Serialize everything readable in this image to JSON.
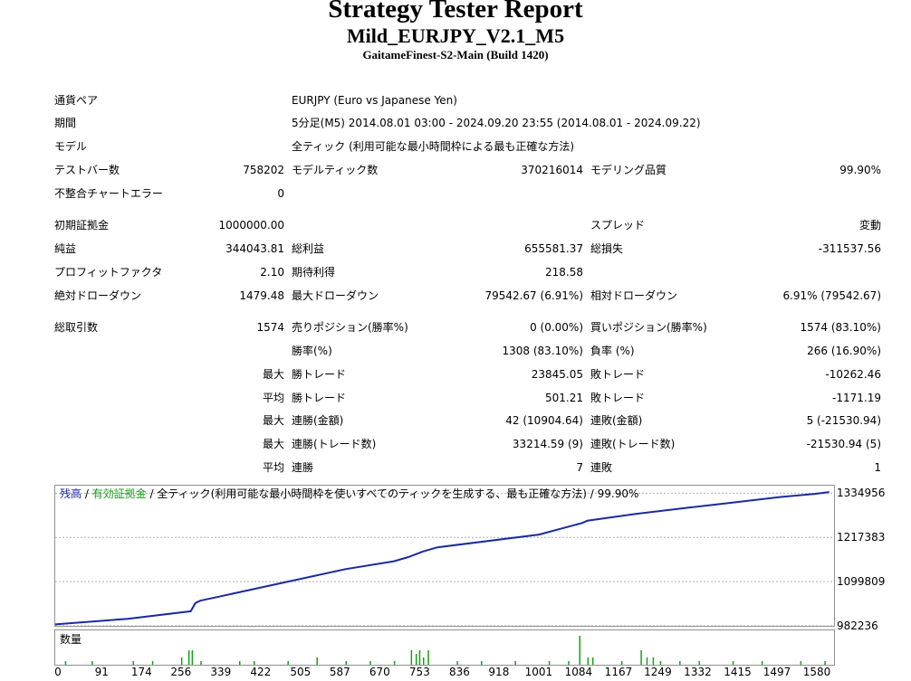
{
  "header": {
    "title": "Strategy Tester Report",
    "subtitle": "Mild_EURJPY_V2.1_M5",
    "build": "GaitameFinest-S2-Main (Build 1420)"
  },
  "info": {
    "symbol_label": "通貨ペア",
    "symbol_value": "EURJPY (Euro vs Japanese Yen)",
    "period_label": "期間",
    "period_value": "5分足(M5) 2014.08.01 03:00 - 2024.09.20 23:55 (2014.08.01 - 2024.09.22)",
    "model_label": "モデル",
    "model_value": "全ティック (利用可能な最小時間枠による最も正確な方法)",
    "bars_label": "テストバー数",
    "bars_value": "758202",
    "ticks_label": "モデルティック数",
    "ticks_value": "370216014",
    "quality_label": "モデリング品質",
    "quality_value": "99.90%",
    "errors_label": "不整合チャートエラー",
    "errors_value": "0"
  },
  "stats": {
    "deposit_label": "初期証拠金",
    "deposit_value": "1000000.00",
    "spread_label": "スプレッド",
    "spread_value": "変動",
    "net_label": "純益",
    "net_value": "344043.81",
    "gross_profit_label": "総利益",
    "gross_profit_value": "655581.37",
    "gross_loss_label": "総損失",
    "gross_loss_value": "-311537.56",
    "pf_label": "プロフィットファクタ",
    "pf_value": "2.10",
    "payoff_label": "期待利得",
    "payoff_value": "218.58",
    "abs_dd_label": "絶対ドローダウン",
    "abs_dd_value": "1479.48",
    "max_dd_label": "最大ドローダウン",
    "max_dd_value": "79542.67 (6.91%)",
    "rel_dd_label": "相対ドローダウン",
    "rel_dd_value": "6.91% (79542.67)",
    "trades_label": "総取引数",
    "trades_value": "1574",
    "short_label": "売りポジション(勝率%)",
    "short_value": "0 (0.00%)",
    "long_label": "買いポジション(勝率%)",
    "long_value": "1574 (83.10%)",
    "winrate_label": "勝率(%)",
    "winrate_value": "1308 (83.10%)",
    "lossrate_label": "負率 (%)",
    "lossrate_value": "266 (16.90%)",
    "max_label": "最大",
    "avg_label": "平均",
    "largest_win_label": "勝トレード",
    "largest_win_value": "23845.05",
    "largest_loss_label": "敗トレード",
    "largest_loss_value": "-10262.46",
    "avg_win_label": "勝トレード",
    "avg_win_value": "501.21",
    "avg_loss_label": "敗トレード",
    "avg_loss_value": "-1171.19",
    "cons_wins_money_label": "連勝(金額)",
    "cons_wins_money_value": "42 (10904.64)",
    "cons_losses_money_label": "連敗(金額)",
    "cons_losses_money_value": "5 (-21530.94)",
    "cons_profit_label": "連勝(トレード数)",
    "cons_profit_value": "33214.59 (9)",
    "cons_loss_label": "連敗(トレード数)",
    "cons_loss_value": "-21530.94 (5)",
    "avg_cons_wins_label": "連勝",
    "avg_cons_wins_value": "7",
    "avg_cons_losses_label": "連敗",
    "avg_cons_losses_value": "1"
  },
  "chart": {
    "legend_balance": "残高",
    "legend_sep1": " / ",
    "legend_equity": "有効証拠金",
    "legend_rest": " / 全ティック(利用可能な最小時間枠を使いすべてのティックを生成する、最も正確な方法) / 99.90%",
    "volume_label": "数量",
    "colors": {
      "balance": "#1a2aa0",
      "equity": "#16a016",
      "volume": "#16a016",
      "grid": "#b0b0b0"
    }
  },
  "chart_data": {
    "type": "line",
    "series": [
      {
        "name": "残高",
        "x": [
          0,
          150,
          280,
          290,
          300,
          600,
          700,
          730,
          760,
          790,
          1000,
          1090,
          1100,
          1200,
          1300,
          1400,
          1500,
          1570,
          1600
        ],
        "y": [
          986000,
          1001000,
          1021000,
          1043000,
          1049000,
          1133000,
          1154000,
          1165000,
          1180000,
          1191000,
          1225000,
          1256000,
          1262000,
          1280000,
          1295000,
          1310000,
          1325000,
          1333000,
          1338000
        ]
      }
    ],
    "yticks": [
      "1334956",
      "1217383",
      "1099809",
      "982236"
    ],
    "ytick_values": [
      1334956,
      1217383,
      1099809,
      982236
    ],
    "xticks": [
      "0",
      "91",
      "174",
      "256",
      "339",
      "422",
      "505",
      "587",
      "670",
      "753",
      "836",
      "918",
      "1001",
      "1084",
      "1167",
      "1249",
      "1332",
      "1415",
      "1497",
      "1580"
    ],
    "xtick_values": [
      0,
      91,
      174,
      256,
      339,
      422,
      505,
      587,
      670,
      753,
      836,
      918,
      1001,
      1084,
      1167,
      1249,
      1332,
      1415,
      1497,
      1580
    ],
    "ylim": [
      982236,
      1355000
    ],
    "xlim": [
      0,
      1610
    ],
    "grid": true,
    "volume": {
      "x": [
        20,
        75,
        160,
        200,
        260,
        275,
        282,
        300,
        380,
        410,
        480,
        540,
        600,
        650,
        700,
        735,
        745,
        752,
        760,
        770,
        830,
        880,
        950,
        1020,
        1060,
        1083,
        1100,
        1110,
        1170,
        1210,
        1222,
        1235,
        1250,
        1290,
        1330,
        1400,
        1460,
        1540,
        1590
      ],
      "y": [
        1,
        1,
        1,
        1,
        2,
        4,
        4,
        1,
        1,
        1,
        1,
        2,
        1,
        1,
        1,
        4,
        3,
        4,
        2,
        4,
        1,
        1,
        1,
        1,
        1,
        8,
        2,
        2,
        1,
        4,
        2,
        2,
        1,
        1,
        1,
        1,
        1,
        1,
        1
      ]
    }
  }
}
